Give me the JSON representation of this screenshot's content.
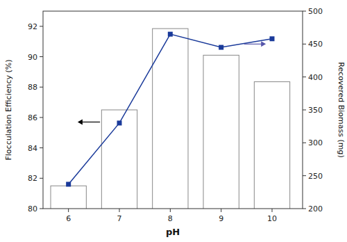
{
  "chart_data": {
    "type": "bar",
    "xlabel": "pH",
    "ylabel": "Flocculation Efficiency (%)",
    "y2label": "Recovered Biomass (mg)",
    "x": [
      6,
      7,
      8,
      9,
      10
    ],
    "xlim": [
      5.5,
      10.6
    ],
    "xticks": [
      6,
      7,
      8,
      9,
      10
    ],
    "ylim": [
      80,
      93
    ],
    "yticks": [
      80,
      82,
      84,
      86,
      88,
      90,
      92
    ],
    "y2lim": [
      200,
      500
    ],
    "y2ticks": [
      200,
      250,
      300,
      350,
      400,
      450,
      500
    ],
    "grid": false,
    "series": [
      {
        "type": "bar",
        "color": "white",
        "values": [
          81.5,
          86.5,
          91.85,
          90.1,
          88.35
        ]
      },
      {
        "type": "line",
        "axis": "y2",
        "color": "#1a3a9a",
        "marker": "square",
        "values": [
          237,
          330,
          465,
          445,
          458
        ]
      }
    ],
    "annotations": [
      {
        "x_start": 6.62,
        "x_end": 6.18,
        "y": 85.7,
        "color": "black"
      },
      {
        "x_start": 9.45,
        "x_end": 9.88,
        "y": 450,
        "axis": "y2",
        "color": "#5555aa"
      }
    ]
  }
}
